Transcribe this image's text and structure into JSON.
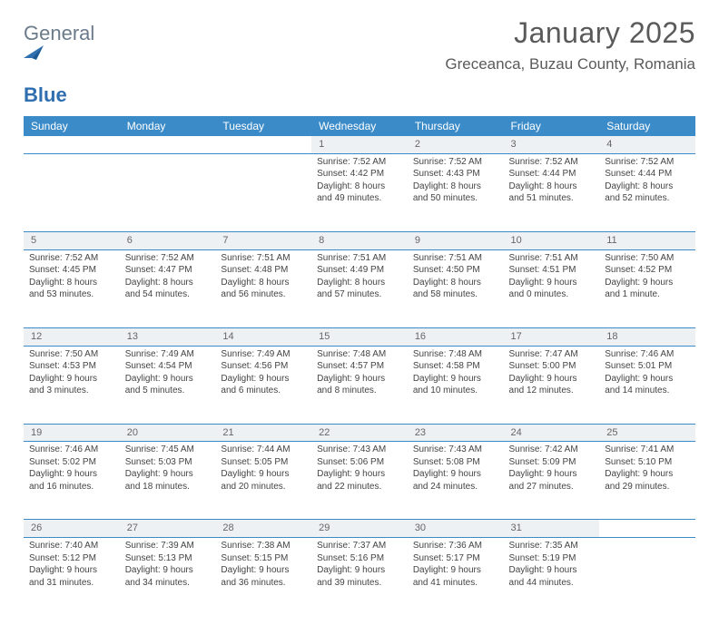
{
  "brand": {
    "word1": "General",
    "word2": "Blue"
  },
  "header": {
    "title": "January 2025",
    "location": "Greceanca, Buzau County, Romania"
  },
  "theme": {
    "header_bg": "#3b8bc9",
    "header_text": "#ffffff",
    "daynum_bg": "#eef1f3",
    "rule_color": "#2f6fb0",
    "page_bg": "#ffffff",
    "body_text": "#444444",
    "title_color": "#5a5a5a",
    "logo_gray": "#6b7b8a",
    "logo_blue": "#2f6fb0"
  },
  "columns": [
    "Sunday",
    "Monday",
    "Tuesday",
    "Wednesday",
    "Thursday",
    "Friday",
    "Saturday"
  ],
  "weeks": [
    {
      "nums": [
        "",
        "",
        "",
        "1",
        "2",
        "3",
        "4"
      ],
      "cells": [
        {
          "sunrise": "",
          "sunset": "",
          "daylight1": "",
          "daylight2": ""
        },
        {
          "sunrise": "",
          "sunset": "",
          "daylight1": "",
          "daylight2": ""
        },
        {
          "sunrise": "",
          "sunset": "",
          "daylight1": "",
          "daylight2": ""
        },
        {
          "sunrise": "Sunrise: 7:52 AM",
          "sunset": "Sunset: 4:42 PM",
          "daylight1": "Daylight: 8 hours",
          "daylight2": "and 49 minutes."
        },
        {
          "sunrise": "Sunrise: 7:52 AM",
          "sunset": "Sunset: 4:43 PM",
          "daylight1": "Daylight: 8 hours",
          "daylight2": "and 50 minutes."
        },
        {
          "sunrise": "Sunrise: 7:52 AM",
          "sunset": "Sunset: 4:44 PM",
          "daylight1": "Daylight: 8 hours",
          "daylight2": "and 51 minutes."
        },
        {
          "sunrise": "Sunrise: 7:52 AM",
          "sunset": "Sunset: 4:44 PM",
          "daylight1": "Daylight: 8 hours",
          "daylight2": "and 52 minutes."
        }
      ]
    },
    {
      "nums": [
        "5",
        "6",
        "7",
        "8",
        "9",
        "10",
        "11"
      ],
      "cells": [
        {
          "sunrise": "Sunrise: 7:52 AM",
          "sunset": "Sunset: 4:45 PM",
          "daylight1": "Daylight: 8 hours",
          "daylight2": "and 53 minutes."
        },
        {
          "sunrise": "Sunrise: 7:52 AM",
          "sunset": "Sunset: 4:47 PM",
          "daylight1": "Daylight: 8 hours",
          "daylight2": "and 54 minutes."
        },
        {
          "sunrise": "Sunrise: 7:51 AM",
          "sunset": "Sunset: 4:48 PM",
          "daylight1": "Daylight: 8 hours",
          "daylight2": "and 56 minutes."
        },
        {
          "sunrise": "Sunrise: 7:51 AM",
          "sunset": "Sunset: 4:49 PM",
          "daylight1": "Daylight: 8 hours",
          "daylight2": "and 57 minutes."
        },
        {
          "sunrise": "Sunrise: 7:51 AM",
          "sunset": "Sunset: 4:50 PM",
          "daylight1": "Daylight: 8 hours",
          "daylight2": "and 58 minutes."
        },
        {
          "sunrise": "Sunrise: 7:51 AM",
          "sunset": "Sunset: 4:51 PM",
          "daylight1": "Daylight: 9 hours",
          "daylight2": "and 0 minutes."
        },
        {
          "sunrise": "Sunrise: 7:50 AM",
          "sunset": "Sunset: 4:52 PM",
          "daylight1": "Daylight: 9 hours",
          "daylight2": "and 1 minute."
        }
      ]
    },
    {
      "nums": [
        "12",
        "13",
        "14",
        "15",
        "16",
        "17",
        "18"
      ],
      "cells": [
        {
          "sunrise": "Sunrise: 7:50 AM",
          "sunset": "Sunset: 4:53 PM",
          "daylight1": "Daylight: 9 hours",
          "daylight2": "and 3 minutes."
        },
        {
          "sunrise": "Sunrise: 7:49 AM",
          "sunset": "Sunset: 4:54 PM",
          "daylight1": "Daylight: 9 hours",
          "daylight2": "and 5 minutes."
        },
        {
          "sunrise": "Sunrise: 7:49 AM",
          "sunset": "Sunset: 4:56 PM",
          "daylight1": "Daylight: 9 hours",
          "daylight2": "and 6 minutes."
        },
        {
          "sunrise": "Sunrise: 7:48 AM",
          "sunset": "Sunset: 4:57 PM",
          "daylight1": "Daylight: 9 hours",
          "daylight2": "and 8 minutes."
        },
        {
          "sunrise": "Sunrise: 7:48 AM",
          "sunset": "Sunset: 4:58 PM",
          "daylight1": "Daylight: 9 hours",
          "daylight2": "and 10 minutes."
        },
        {
          "sunrise": "Sunrise: 7:47 AM",
          "sunset": "Sunset: 5:00 PM",
          "daylight1": "Daylight: 9 hours",
          "daylight2": "and 12 minutes."
        },
        {
          "sunrise": "Sunrise: 7:46 AM",
          "sunset": "Sunset: 5:01 PM",
          "daylight1": "Daylight: 9 hours",
          "daylight2": "and 14 minutes."
        }
      ]
    },
    {
      "nums": [
        "19",
        "20",
        "21",
        "22",
        "23",
        "24",
        "25"
      ],
      "cells": [
        {
          "sunrise": "Sunrise: 7:46 AM",
          "sunset": "Sunset: 5:02 PM",
          "daylight1": "Daylight: 9 hours",
          "daylight2": "and 16 minutes."
        },
        {
          "sunrise": "Sunrise: 7:45 AM",
          "sunset": "Sunset: 5:03 PM",
          "daylight1": "Daylight: 9 hours",
          "daylight2": "and 18 minutes."
        },
        {
          "sunrise": "Sunrise: 7:44 AM",
          "sunset": "Sunset: 5:05 PM",
          "daylight1": "Daylight: 9 hours",
          "daylight2": "and 20 minutes."
        },
        {
          "sunrise": "Sunrise: 7:43 AM",
          "sunset": "Sunset: 5:06 PM",
          "daylight1": "Daylight: 9 hours",
          "daylight2": "and 22 minutes."
        },
        {
          "sunrise": "Sunrise: 7:43 AM",
          "sunset": "Sunset: 5:08 PM",
          "daylight1": "Daylight: 9 hours",
          "daylight2": "and 24 minutes."
        },
        {
          "sunrise": "Sunrise: 7:42 AM",
          "sunset": "Sunset: 5:09 PM",
          "daylight1": "Daylight: 9 hours",
          "daylight2": "and 27 minutes."
        },
        {
          "sunrise": "Sunrise: 7:41 AM",
          "sunset": "Sunset: 5:10 PM",
          "daylight1": "Daylight: 9 hours",
          "daylight2": "and 29 minutes."
        }
      ]
    },
    {
      "nums": [
        "26",
        "27",
        "28",
        "29",
        "30",
        "31",
        ""
      ],
      "cells": [
        {
          "sunrise": "Sunrise: 7:40 AM",
          "sunset": "Sunset: 5:12 PM",
          "daylight1": "Daylight: 9 hours",
          "daylight2": "and 31 minutes."
        },
        {
          "sunrise": "Sunrise: 7:39 AM",
          "sunset": "Sunset: 5:13 PM",
          "daylight1": "Daylight: 9 hours",
          "daylight2": "and 34 minutes."
        },
        {
          "sunrise": "Sunrise: 7:38 AM",
          "sunset": "Sunset: 5:15 PM",
          "daylight1": "Daylight: 9 hours",
          "daylight2": "and 36 minutes."
        },
        {
          "sunrise": "Sunrise: 7:37 AM",
          "sunset": "Sunset: 5:16 PM",
          "daylight1": "Daylight: 9 hours",
          "daylight2": "and 39 minutes."
        },
        {
          "sunrise": "Sunrise: 7:36 AM",
          "sunset": "Sunset: 5:17 PM",
          "daylight1": "Daylight: 9 hours",
          "daylight2": "and 41 minutes."
        },
        {
          "sunrise": "Sunrise: 7:35 AM",
          "sunset": "Sunset: 5:19 PM",
          "daylight1": "Daylight: 9 hours",
          "daylight2": "and 44 minutes."
        },
        {
          "sunrise": "",
          "sunset": "",
          "daylight1": "",
          "daylight2": ""
        }
      ]
    }
  ]
}
